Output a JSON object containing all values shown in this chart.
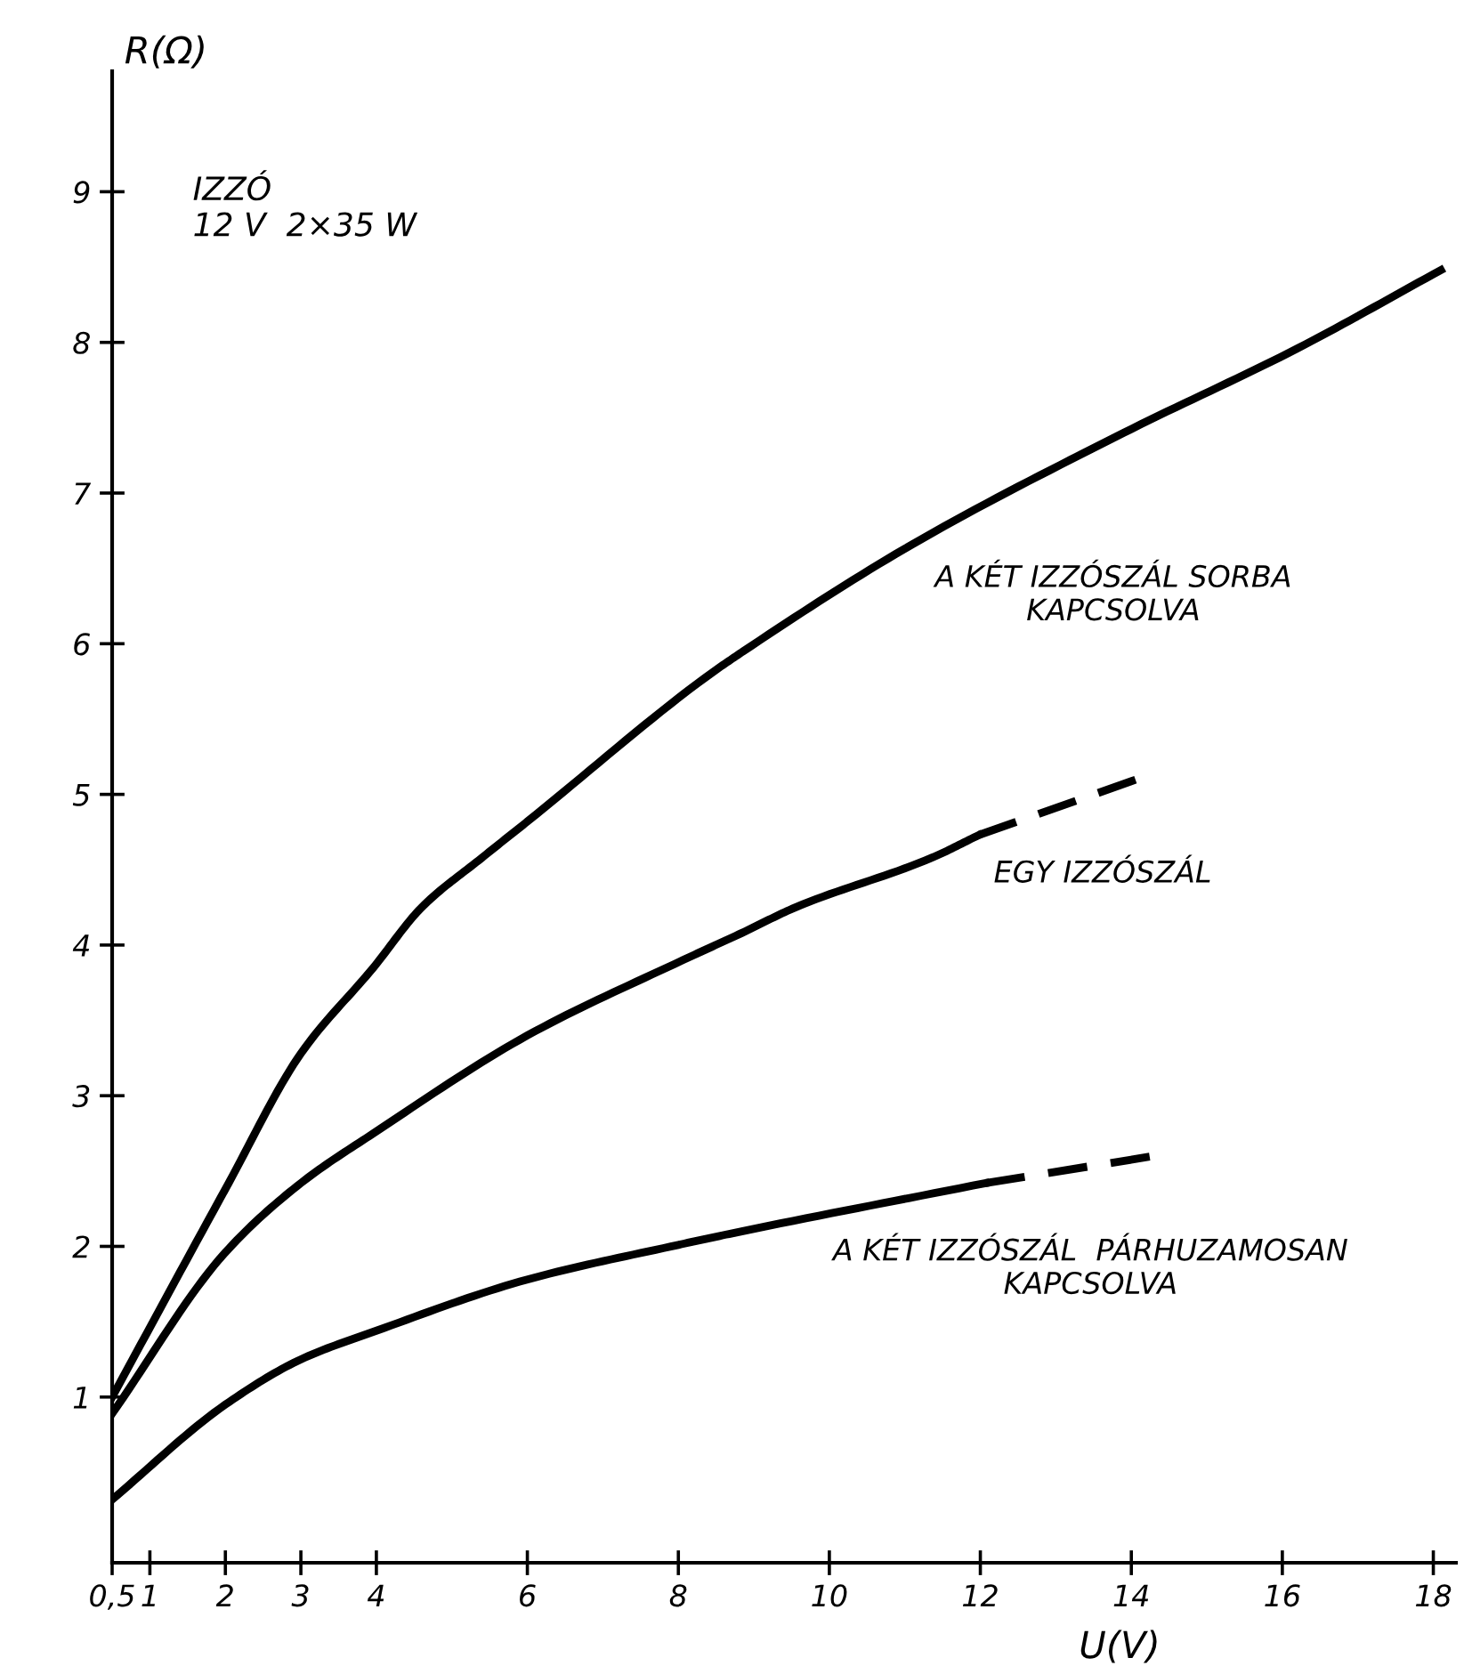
{
  "chart_data": {
    "type": "line",
    "xlabel": "U(V)",
    "ylabel": "R(Ω)",
    "annotations": [
      "IZZÓ\n12 V  2×35 W",
      {
        "text": "A KÉT IZZÓSZÁL SORBA\nKAPCSOLVA",
        "x": 11.2,
        "y": 6.69
      },
      {
        "text": "EGY IZZÓSZÁL",
        "x": 11.98,
        "y": 4.73
      },
      {
        "text": "A KÉT IZZÓSZÁL  PÁRHUZAMOSAN\nKAPCSOLVA",
        "x": 9.85,
        "y": 2.22
      }
    ],
    "series": [
      {
        "color": "#000000",
        "line_style": "solid",
        "x": [
          0.5,
          2,
          3,
          3.96,
          4.6,
          5.4,
          6,
          8.37,
          8.86,
          11.1,
          13.9,
          16.2,
          18.1
        ],
        "values": [
          1.0,
          2.38,
          3.28,
          3.85,
          4.25,
          4.58,
          4.82,
          5.78,
          5.95,
          6.66,
          7.4,
          7.96,
          8.48
        ]
      },
      {
        "color": "#000000",
        "line_style": "solid",
        "x": [
          0.5,
          2,
          3,
          3.96,
          6,
          8.06,
          8.84,
          9.55,
          11.36,
          11.98
        ],
        "values": [
          0.89,
          1.96,
          2.42,
          2.75,
          3.4,
          3.9,
          4.08,
          4.25,
          4.58,
          4.73
        ]
      },
      {
        "color": "#000000",
        "line_style": "dashed",
        "x": [
          11.98,
          14.07
        ],
        "values": [
          4.73,
          5.1
        ]
      },
      {
        "color": "#000000",
        "line_style": "solid",
        "x": [
          0.5,
          2,
          3,
          4,
          6,
          8,
          8.84,
          12.07
        ],
        "values": [
          0.32,
          0.95,
          1.25,
          1.44,
          1.78,
          2.01,
          2.1,
          2.42
        ]
      },
      {
        "color": "#000000",
        "line_style": "dashed",
        "x": [
          12.07,
          14.3
        ],
        "values": [
          2.42,
          2.6
        ]
      }
    ],
    "xlim": [
      0.5,
      18.3
    ],
    "ylim": [
      -0.1,
      9.8
    ],
    "xticks": [
      {
        "value": 0.5,
        "label": "0,5"
      },
      1,
      2,
      3,
      4,
      6,
      8,
      10,
      12,
      14,
      16,
      18
    ],
    "yticks": [
      1,
      2,
      3,
      4,
      5,
      6,
      7,
      8,
      9
    ],
    "grid": false,
    "legend": false,
    "marker": "none"
  }
}
